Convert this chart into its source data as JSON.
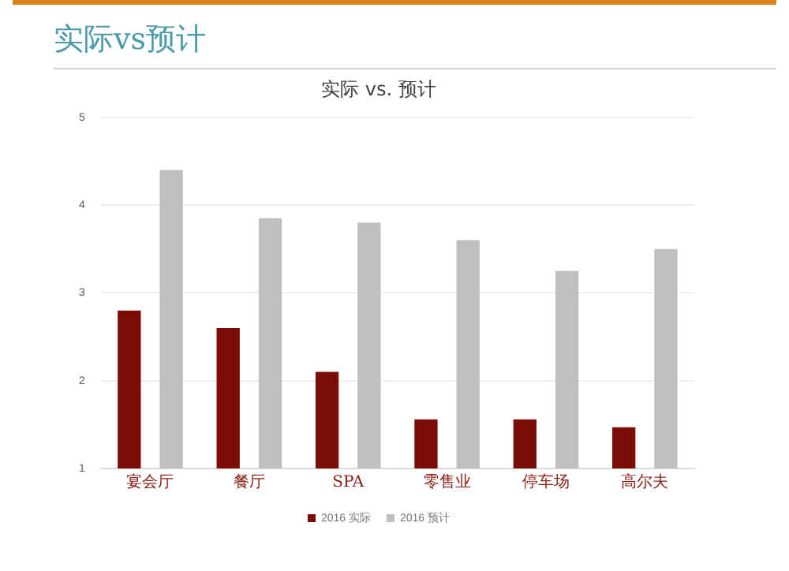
{
  "chart_data": {
    "type": "bar",
    "title": "实际vs预计",
    "subtitle": "实际 vs. 预计",
    "categories": [
      "宴会厅",
      "餐厅",
      "SPA",
      "零售业",
      "停车场",
      "高尔夫"
    ],
    "series": [
      {
        "name": "2016 实际",
        "color": "#7b0c06",
        "values": [
          2.8,
          2.6,
          2.1,
          1.56,
          1.56,
          1.47
        ]
      },
      {
        "name": "2016 预计",
        "color": "#bfbfbf",
        "values": [
          4.4,
          3.85,
          3.8,
          3.6,
          3.25,
          3.5
        ]
      }
    ],
    "ylim": [
      1,
      5
    ],
    "yticks": [
      1,
      2,
      3,
      4,
      5
    ],
    "grid": "y",
    "legend": "bottom"
  }
}
